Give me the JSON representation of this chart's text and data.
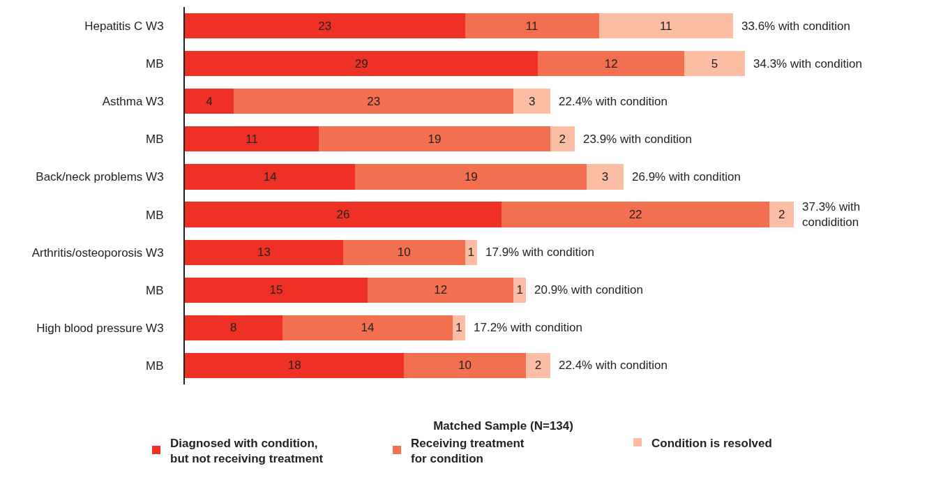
{
  "chart_data": {
    "type": "bar",
    "orientation": "horizontal",
    "stacked": true,
    "data_labels": true,
    "categories": [
      "Hepatitis C W3",
      "MB",
      "Asthma W3",
      "MB",
      "Back/neck problems W3",
      "MB",
      "Arthritis/osteoporosis W3",
      "MB",
      "High blood pressure W3",
      "MB"
    ],
    "series": [
      {
        "name": "Diagnosed with condition,\nbut not receiving treatment",
        "color": "#ee3124",
        "values": [
          23,
          29,
          4,
          11,
          14,
          26,
          13,
          15,
          8,
          18
        ]
      },
      {
        "name": "Receiving treatment\nfor condition",
        "color": "#f26f50",
        "values": [
          11,
          12,
          23,
          19,
          19,
          22,
          10,
          12,
          14,
          10
        ]
      },
      {
        "name": "Condition is resolved",
        "color": "#fbbea5",
        "values": [
          11,
          5,
          3,
          2,
          3,
          2,
          1,
          1,
          1,
          2
        ]
      }
    ],
    "annotations": [
      "33.6% with condition",
      "34.3% with condition",
      "22.4% with condition",
      "23.9% with condition",
      "26.9% with condition",
      "37.3% with\ncondidition",
      "17.9% with condition",
      "20.9% with condition",
      "17.2% with condition",
      "22.4% with condition"
    ],
    "legend_title": "Matched Sample (N=134)",
    "legend": "bottom"
  }
}
